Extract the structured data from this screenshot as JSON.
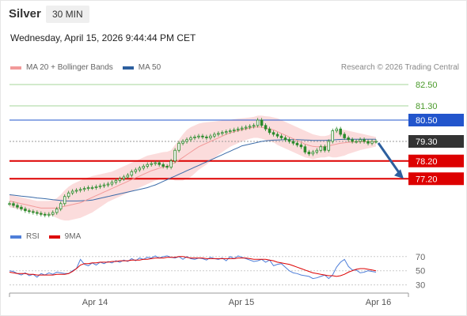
{
  "header": {
    "instrument": "Silver",
    "timeframe": "30 MIN",
    "datetime": "Wednesday, April 15, 2026 9:44:44 PM CET"
  },
  "legend": {
    "ma_bb": "MA 20 + Bollinger Bands",
    "ma50": "MA 50",
    "credit": "Research © 2026 Trading Central"
  },
  "rsi_legend": {
    "rsi": "RSI",
    "ma9": "9MA"
  },
  "colors": {
    "bb_fill": "#fbdcdc",
    "ma20": "#f29a9a",
    "ma50": "#3a6aa8",
    "candle": "#2b8a2b",
    "resistance_green": "#a6d59a",
    "pivot_blue": "#2255cc",
    "support_red": "#dd0000",
    "last_price": "#333333",
    "rsi": "#4f7fd9",
    "rsi_ma": "#dd0000",
    "arrow": "#2d5f9e"
  },
  "chart_data": {
    "type": "line",
    "instrument": "Silver",
    "timeframe": "30 MIN",
    "x_ticks": [
      "Apr 14",
      "Apr 15",
      "Apr 16"
    ],
    "levels": [
      {
        "value": 82.5,
        "label": "82.50",
        "kind": "resistance"
      },
      {
        "value": 81.3,
        "label": "81.30",
        "kind": "resistance"
      },
      {
        "value": 80.5,
        "label": "80.50",
        "kind": "pivot"
      },
      {
        "value": 79.3,
        "label": "79.30",
        "kind": "last"
      },
      {
        "value": 78.2,
        "label": "78.20",
        "kind": "support"
      },
      {
        "value": 77.2,
        "label": "77.20",
        "kind": "support"
      }
    ],
    "price_ylim": [
      74.9,
      82.9
    ],
    "projection": {
      "from": 79.3,
      "to": 77.2
    },
    "close": [
      75.8,
      75.7,
      75.6,
      75.5,
      75.4,
      75.35,
      75.3,
      75.25,
      75.2,
      75.15,
      75.2,
      75.3,
      75.5,
      75.8,
      76.2,
      76.4,
      76.5,
      76.55,
      76.6,
      76.65,
      76.7,
      76.7,
      76.75,
      76.8,
      76.85,
      76.9,
      77.0,
      77.1,
      77.2,
      77.3,
      77.4,
      77.6,
      77.7,
      77.8,
      77.9,
      78.0,
      78.05,
      78.1,
      78.0,
      77.9,
      77.85,
      78.2,
      78.8,
      79.2,
      79.3,
      79.4,
      79.5,
      79.55,
      79.6,
      79.55,
      79.5,
      79.6,
      79.7,
      79.75,
      79.8,
      79.85,
      79.9,
      79.95,
      80.0,
      80.05,
      80.1,
      80.15,
      80.2,
      80.5,
      80.2,
      80.0,
      79.8,
      79.7,
      79.6,
      79.5,
      79.4,
      79.3,
      79.2,
      79.1,
      79.0,
      78.7,
      78.6,
      78.7,
      78.8,
      79.0,
      78.8,
      79.3,
      79.9,
      80.0,
      79.7,
      79.5,
      79.4,
      79.3,
      79.3,
      79.4,
      79.3,
      79.2,
      79.3,
      79.3
    ],
    "ma20": [
      75.95,
      75.9,
      75.85,
      75.8,
      75.75,
      75.7,
      75.65,
      75.6,
      75.55,
      75.55,
      75.55,
      75.55,
      75.55,
      75.6,
      75.65,
      75.7,
      75.75,
      75.8,
      75.85,
      75.95,
      76.05,
      76.15,
      76.25,
      76.35,
      76.45,
      76.55,
      76.65,
      76.75,
      76.85,
      76.95,
      77.05,
      77.15,
      77.25,
      77.35,
      77.45,
      77.55,
      77.65,
      77.72,
      77.8,
      77.85,
      77.9,
      78.0,
      78.1,
      78.25,
      78.4,
      78.55,
      78.7,
      78.85,
      79.0,
      79.1,
      79.2,
      79.3,
      79.4,
      79.5,
      79.6,
      79.7,
      79.78,
      79.85,
      79.9,
      79.95,
      80.0,
      80.05,
      80.1,
      80.12,
      80.1,
      80.05,
      80.0,
      79.95,
      79.85,
      79.75,
      79.65,
      79.55,
      79.45,
      79.35,
      79.25,
      79.15,
      79.08,
      79.02,
      79.0,
      79.0,
      79.0,
      79.05,
      79.1,
      79.15,
      79.2,
      79.22,
      79.25,
      79.26,
      79.27,
      79.28,
      79.28,
      79.28,
      79.28,
      79.28
    ],
    "bb_upper": [
      76.3,
      76.25,
      76.2,
      76.15,
      76.1,
      76.05,
      76.0,
      75.95,
      75.95,
      75.95,
      75.95,
      76.0,
      76.1,
      76.3,
      76.55,
      76.75,
      76.9,
      77.0,
      77.1,
      77.2,
      77.28,
      77.35,
      77.4,
      77.45,
      77.5,
      77.55,
      77.6,
      77.7,
      77.8,
      77.9,
      78.0,
      78.1,
      78.2,
      78.3,
      78.4,
      78.5,
      78.55,
      78.6,
      78.65,
      78.7,
      78.72,
      78.8,
      79.1,
      79.4,
      79.7,
      79.95,
      80.1,
      80.2,
      80.3,
      80.35,
      80.38,
      80.4,
      80.42,
      80.45,
      80.48,
      80.5,
      80.52,
      80.55,
      80.58,
      80.6,
      80.62,
      80.65,
      80.68,
      80.75,
      80.75,
      80.72,
      80.7,
      80.65,
      80.6,
      80.5,
      80.4,
      80.3,
      80.2,
      80.1,
      80.0,
      79.9,
      79.8,
      79.7,
      79.65,
      79.6,
      79.6,
      79.65,
      79.8,
      79.9,
      79.95,
      79.95,
      79.9,
      79.85,
      79.8,
      79.75,
      79.7,
      79.65,
      79.6,
      79.55
    ],
    "bb_lower": [
      75.6,
      75.55,
      75.5,
      75.45,
      75.4,
      75.35,
      75.3,
      75.25,
      75.15,
      75.15,
      75.15,
      75.1,
      75.0,
      74.9,
      74.85,
      74.85,
      74.9,
      74.95,
      75.0,
      75.1,
      75.2,
      75.3,
      75.45,
      75.6,
      75.75,
      75.9,
      76.0,
      76.1,
      76.2,
      76.3,
      76.4,
      76.5,
      76.6,
      76.7,
      76.8,
      76.9,
      77.0,
      77.1,
      77.15,
      77.2,
      77.2,
      77.2,
      77.1,
      77.1,
      77.1,
      77.2,
      77.3,
      77.5,
      77.7,
      77.85,
      78.0,
      78.2,
      78.35,
      78.55,
      78.7,
      78.85,
      79.0,
      79.1,
      79.2,
      79.3,
      79.38,
      79.45,
      79.5,
      79.5,
      79.45,
      79.38,
      79.3,
      79.25,
      79.1,
      79.0,
      78.9,
      78.8,
      78.7,
      78.6,
      78.5,
      78.4,
      78.35,
      78.3,
      78.35,
      78.4,
      78.4,
      78.45,
      78.4,
      78.4,
      78.45,
      78.5,
      78.6,
      78.67,
      78.74,
      78.81,
      78.86,
      78.91,
      78.96,
      79.01
    ],
    "ma50": [
      76.3,
      76.28,
      76.25,
      76.22,
      76.2,
      76.18,
      76.15,
      76.12,
      76.1,
      76.08,
      76.05,
      76.02,
      76.0,
      75.98,
      75.96,
      75.95,
      75.95,
      75.95,
      75.96,
      75.97,
      75.98,
      76.0,
      76.05,
      76.1,
      76.15,
      76.2,
      76.25,
      76.3,
      76.35,
      76.4,
      76.45,
      76.5,
      76.55,
      76.6,
      76.65,
      76.7,
      76.78,
      76.85,
      76.95,
      77.05,
      77.15,
      77.25,
      77.35,
      77.45,
      77.55,
      77.65,
      77.75,
      77.85,
      77.95,
      78.05,
      78.15,
      78.25,
      78.35,
      78.45,
      78.55,
      78.65,
      78.75,
      78.85,
      78.95,
      79.05,
      79.1,
      79.15,
      79.2,
      79.25,
      79.3,
      79.33,
      79.35,
      79.37,
      79.38,
      79.39,
      79.4,
      79.4,
      79.4,
      79.4,
      79.39,
      79.38,
      79.37,
      79.36,
      79.36,
      79.36,
      79.36,
      79.37,
      79.38,
      79.4,
      79.41,
      79.42,
      79.42,
      79.42,
      79.42,
      79.42,
      79.42,
      79.42,
      79.42,
      79.42
    ],
    "rsi_levels": [
      70,
      50,
      30
    ],
    "rsi_ylim": [
      24,
      82
    ],
    "rsi": [
      50,
      49,
      46,
      44,
      47,
      43,
      45,
      41,
      46,
      44,
      47,
      45,
      48,
      47,
      46,
      46,
      50,
      53,
      66,
      59,
      57,
      61,
      58,
      62,
      60,
      63,
      61,
      64,
      62,
      65,
      63,
      67,
      64,
      68,
      66,
      69,
      68,
      71,
      68,
      70,
      71,
      69,
      68,
      70,
      66,
      70,
      67,
      66,
      68,
      67,
      65,
      69,
      67,
      66,
      68,
      64,
      70,
      67,
      71,
      69,
      67,
      65,
      63,
      64,
      66,
      62,
      65,
      57,
      59,
      60,
      55,
      50,
      47,
      46,
      44,
      43,
      42,
      39,
      40,
      42,
      44,
      39,
      44,
      55,
      62,
      66,
      56,
      51,
      51,
      47,
      48,
      50,
      49,
      48
    ],
    "rsi_ma": [
      48,
      47,
      46,
      46,
      46,
      45,
      45,
      44,
      44,
      44,
      44,
      44,
      45,
      45,
      45,
      46,
      49,
      53,
      58,
      60,
      60,
      61,
      61,
      62,
      62,
      62,
      63,
      63,
      64,
      64,
      64,
      65,
      65,
      65,
      66,
      66,
      67,
      68,
      68,
      68,
      69,
      69,
      69,
      70,
      70,
      69,
      68,
      68,
      68,
      68,
      67,
      67,
      67,
      67,
      67,
      67,
      67,
      67,
      68,
      68,
      68,
      67,
      66,
      66,
      66,
      66,
      65,
      64,
      62,
      61,
      60,
      59,
      57,
      55,
      53,
      51,
      49,
      47,
      46,
      45,
      44,
      43,
      43,
      42,
      43,
      45,
      48,
      50,
      52,
      53,
      53,
      52,
      51,
      50
    ]
  }
}
